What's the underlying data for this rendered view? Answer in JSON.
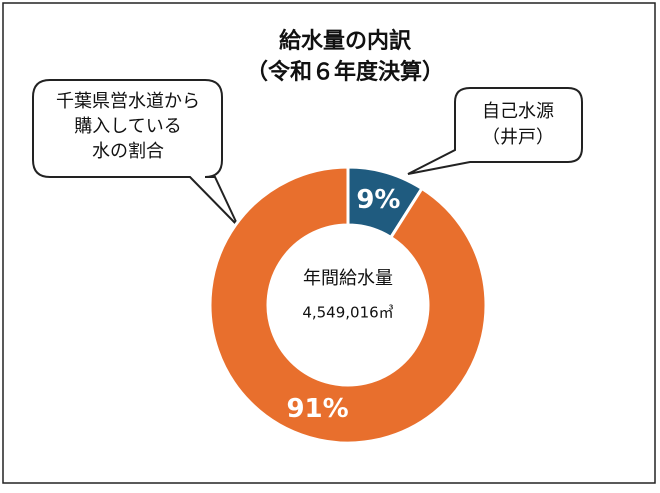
{
  "chart_data": {
    "type": "donut",
    "title": [
      "給水量の内訳",
      "（令和６年度決算）"
    ],
    "categories": [
      [
        "自己水源",
        "（井戸）"
      ],
      [
        "千葉県営水道から",
        "購入している",
        "水の割合"
      ]
    ],
    "values": [
      9,
      91
    ],
    "value_labels": [
      "9%",
      "91%"
    ],
    "colors": [
      "#1f5b7f",
      "#e86f2d"
    ],
    "center_label": "年間給水量",
    "center_value": "4,549,016㎥"
  }
}
